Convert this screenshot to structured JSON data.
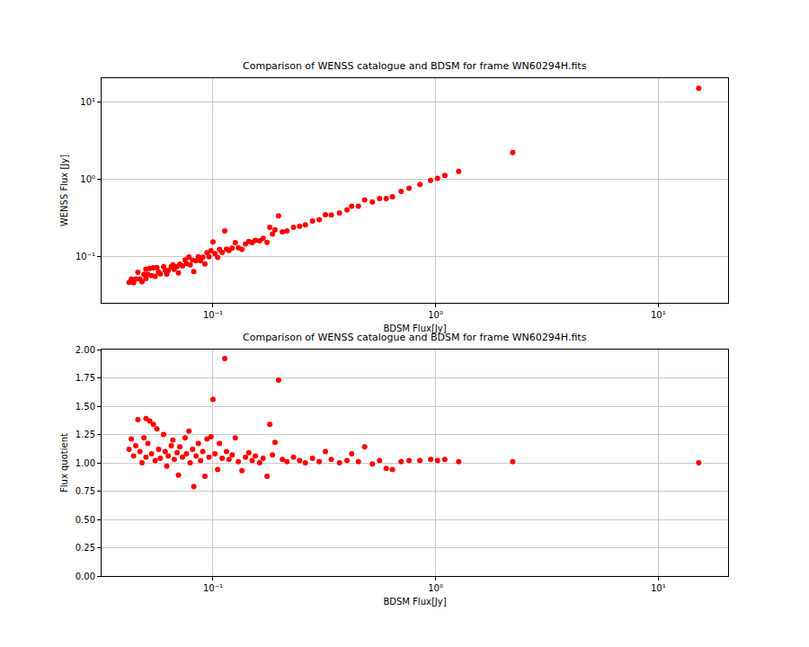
{
  "chart_data": [
    {
      "type": "scatter",
      "title": "Comparison of WENSS catalogue and BDSM for frame WN60294H.fits",
      "x_label": "BDSM Flux[Jy]",
      "y_label": "WENSS Flux [Jy]",
      "log": true,
      "grid": true,
      "color": "red",
      "marker": "circle",
      "xlim": [
        0.0316,
        20.6
      ],
      "ylim": [
        0.0255,
        20.6
      ],
      "xticks": [
        {
          "value": 0.1,
          "label": "10⁻¹"
        },
        {
          "value": 1,
          "label": "10⁰"
        },
        {
          "value": 10,
          "label": "10¹"
        }
      ],
      "yticks": [
        {
          "value": 0.1,
          "label": "10⁻¹"
        },
        {
          "value": 1,
          "label": "10⁰"
        },
        {
          "value": 10,
          "label": "10¹"
        }
      ],
      "x": [
        0.042,
        0.043,
        0.044,
        0.045,
        0.046,
        0.047,
        0.048,
        0.049,
        0.05,
        0.05,
        0.051,
        0.052,
        0.053,
        0.054,
        0.055,
        0.056,
        0.057,
        0.058,
        0.06,
        0.061,
        0.062,
        0.063,
        0.065,
        0.066,
        0.067,
        0.069,
        0.07,
        0.071,
        0.073,
        0.075,
        0.076,
        0.078,
        0.079,
        0.081,
        0.082,
        0.084,
        0.086,
        0.088,
        0.09,
        0.092,
        0.094,
        0.096,
        0.098,
        0.1,
        0.102,
        0.105,
        0.107,
        0.11,
        0.113,
        0.115,
        0.118,
        0.122,
        0.126,
        0.13,
        0.135,
        0.14,
        0.145,
        0.15,
        0.155,
        0.162,
        0.168,
        0.175,
        0.18,
        0.185,
        0.19,
        0.197,
        0.205,
        0.215,
        0.23,
        0.245,
        0.26,
        0.28,
        0.3,
        0.32,
        0.34,
        0.37,
        0.4,
        0.42,
        0.45,
        0.48,
        0.52,
        0.56,
        0.6,
        0.64,
        0.7,
        0.76,
        0.85,
        0.95,
        1.02,
        1.1,
        1.27,
        2.22,
        15.2
      ],
      "values": [
        0.047,
        0.052,
        0.0466,
        0.0518,
        0.0635,
        0.0517,
        0.048,
        0.0598,
        0.0695,
        0.0525,
        0.0597,
        0.0712,
        0.0572,
        0.0724,
        0.0561,
        0.0728,
        0.0638,
        0.0603,
        0.075,
        0.0671,
        0.0601,
        0.0668,
        0.0748,
        0.0792,
        0.069,
        0.0752,
        0.0623,
        0.0809,
        0.0767,
        0.0915,
        0.0821,
        0.0998,
        0.079,
        0.0907,
        0.0648,
        0.089,
        0.1006,
        0.0898,
        0.099,
        0.081,
        0.1137,
        0.1008,
        0.1205,
        0.156,
        0.1102,
        0.0987,
        0.1252,
        0.1144,
        0.217,
        0.1265,
        0.1215,
        0.1305,
        0.1537,
        0.1313,
        0.1256,
        0.147,
        0.1581,
        0.153,
        0.1643,
        0.162,
        0.1747,
        0.154,
        0.2412,
        0.198,
        0.2242,
        0.3408,
        0.2112,
        0.2172,
        0.2415,
        0.2499,
        0.26,
        0.2912,
        0.303,
        0.352,
        0.3502,
        0.37,
        0.408,
        0.4536,
        0.4545,
        0.5472,
        0.5148,
        0.5712,
        0.57,
        0.6016,
        0.707,
        0.7752,
        0.867,
        0.9785,
        1.0404,
        1.133,
        1.2827,
        2.2422,
        15.2
      ]
    },
    {
      "type": "scatter",
      "title": "Comparison of WENSS catalogue and BDSM for frame WN60294H.fits",
      "x_label": "BDSM Flux[Jy]",
      "y_label": "Flux quotient",
      "log": "x",
      "grid": true,
      "color": "red",
      "marker": "circle",
      "xlim": [
        0.0316,
        20.6
      ],
      "ylim": [
        0,
        2
      ],
      "xticks": [
        {
          "value": 0.1,
          "label": "10⁻¹"
        },
        {
          "value": 1,
          "label": "10⁰"
        },
        {
          "value": 10,
          "label": "10¹"
        }
      ],
      "yticks": [
        {
          "value": 0,
          "label": "0.00"
        },
        {
          "value": 0.25,
          "label": "0.25"
        },
        {
          "value": 0.5,
          "label": "0.50"
        },
        {
          "value": 0.75,
          "label": "0.75"
        },
        {
          "value": 1,
          "label": "1.00"
        },
        {
          "value": 1.25,
          "label": "1.25"
        },
        {
          "value": 1.5,
          "label": "1.50"
        },
        {
          "value": 1.75,
          "label": "1.75"
        },
        {
          "value": 2,
          "label": "2.00"
        }
      ],
      "x": [
        0.042,
        0.043,
        0.044,
        0.045,
        0.046,
        0.047,
        0.048,
        0.049,
        0.05,
        0.05,
        0.051,
        0.052,
        0.053,
        0.054,
        0.055,
        0.056,
        0.057,
        0.058,
        0.06,
        0.061,
        0.062,
        0.063,
        0.065,
        0.066,
        0.067,
        0.069,
        0.07,
        0.071,
        0.073,
        0.075,
        0.076,
        0.078,
        0.079,
        0.081,
        0.082,
        0.084,
        0.086,
        0.088,
        0.09,
        0.092,
        0.094,
        0.096,
        0.098,
        0.1,
        0.102,
        0.105,
        0.107,
        0.11,
        0.113,
        0.115,
        0.118,
        0.122,
        0.126,
        0.13,
        0.135,
        0.14,
        0.145,
        0.15,
        0.155,
        0.162,
        0.168,
        0.175,
        0.18,
        0.185,
        0.19,
        0.197,
        0.205,
        0.215,
        0.23,
        0.245,
        0.26,
        0.28,
        0.3,
        0.32,
        0.34,
        0.37,
        0.4,
        0.42,
        0.45,
        0.48,
        0.52,
        0.56,
        0.6,
        0.64,
        0.7,
        0.76,
        0.85,
        0.95,
        1.02,
        1.1,
        1.27,
        2.22,
        15.2
      ],
      "values": [
        1.12,
        1.21,
        1.06,
        1.15,
        1.38,
        1.1,
        1.0,
        1.22,
        1.39,
        1.05,
        1.17,
        1.37,
        1.08,
        1.34,
        1.02,
        1.3,
        1.12,
        1.04,
        1.25,
        1.1,
        0.97,
        1.06,
        1.15,
        1.2,
        1.03,
        1.09,
        0.89,
        1.14,
        1.05,
        1.22,
        1.08,
        1.28,
        1.0,
        1.12,
        0.79,
        1.06,
        1.17,
        1.02,
        1.1,
        0.88,
        1.21,
        1.05,
        1.23,
        1.56,
        1.08,
        0.94,
        1.17,
        1.04,
        1.92,
        1.1,
        1.03,
        1.07,
        1.22,
        1.01,
        0.93,
        1.05,
        1.09,
        1.02,
        1.06,
        1.0,
        1.04,
        0.88,
        1.34,
        1.07,
        1.18,
        1.73,
        1.03,
        1.01,
        1.05,
        1.02,
        1.0,
        1.04,
        1.01,
        1.1,
        1.03,
        1.0,
        1.02,
        1.08,
        1.01,
        1.14,
        0.99,
        1.02,
        0.95,
        0.94,
        1.01,
        1.02,
        1.02,
        1.03,
        1.02,
        1.03,
        1.01,
        1.01,
        1.0
      ]
    }
  ]
}
